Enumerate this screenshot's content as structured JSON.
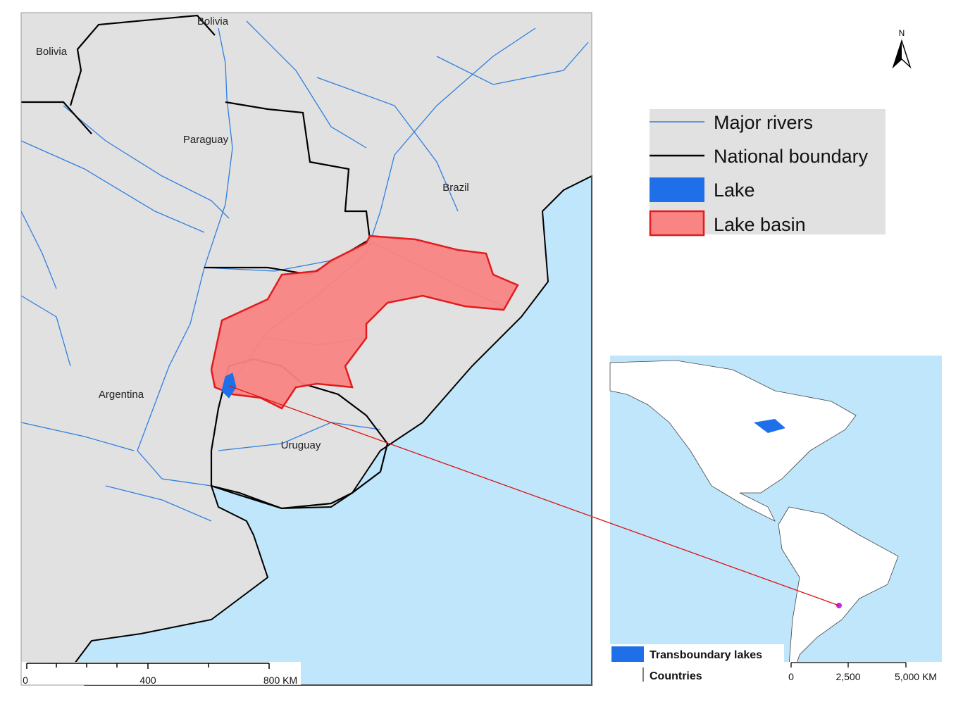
{
  "map_labels": [
    "Bolivia",
    "Bolivia",
    "Paraguay",
    "Brazil",
    "Argentina",
    "Uruguay"
  ],
  "north_arrow": "N",
  "legend": {
    "items": [
      "Major rivers",
      "National boundary",
      "Lake",
      "Lake basin"
    ]
  },
  "scale_bar": {
    "labels": [
      "0",
      "400",
      "800 KM"
    ]
  },
  "inset": {
    "legend": [
      "Transboundary lakes",
      "Countries"
    ],
    "scale_bar": {
      "labels": [
        "0",
        "2,500",
        "5,000 KM"
      ]
    }
  }
}
